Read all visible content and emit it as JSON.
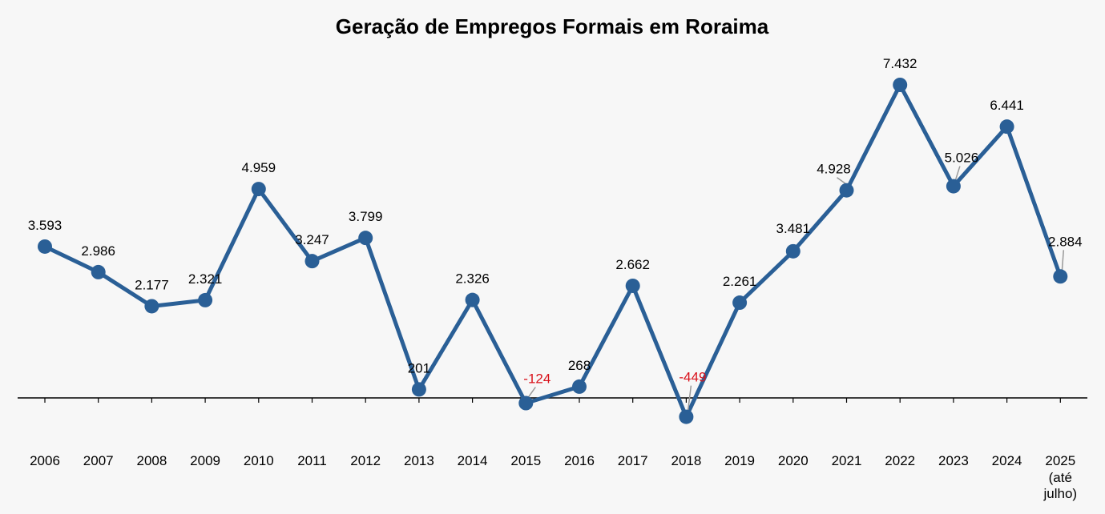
{
  "chart_data": {
    "type": "line",
    "title": "Geração de Empregos Formais em Roraima",
    "xlabel": "",
    "ylabel": "",
    "ylim": [
      -600,
      8000
    ],
    "grid": false,
    "legend": "none",
    "categories": [
      "2006",
      "2007",
      "2008",
      "2009",
      "2010",
      "2011",
      "2012",
      "2013",
      "2014",
      "2015",
      "2016",
      "2017",
      "2018",
      "2019",
      "2020",
      "2021",
      "2022",
      "2023",
      "2024",
      "2025"
    ],
    "category_sublabels": {
      "2025": [
        "(até",
        "julho)"
      ]
    },
    "series": [
      {
        "values": [
          3593,
          2986,
          2177,
          2321,
          4959,
          3247,
          3799,
          201,
          2326,
          -124,
          268,
          2662,
          -449,
          2261,
          3481,
          4928,
          7432,
          5026,
          6441,
          2884
        ],
        "data_labels": [
          "3.593",
          "2.986",
          "2.177",
          "2.321",
          "4.959",
          "3.247",
          "3.799",
          "201",
          "2.326",
          "-124",
          "268",
          "2.662",
          "-449",
          "2.261",
          "3.481",
          "4.928",
          "7.432",
          "5.026",
          "6.441",
          "2.884"
        ]
      }
    ],
    "colors": {
      "line": "#2a5f96",
      "negative_label": "#d9121b",
      "text": "#000000",
      "leader": "#999999"
    }
  }
}
